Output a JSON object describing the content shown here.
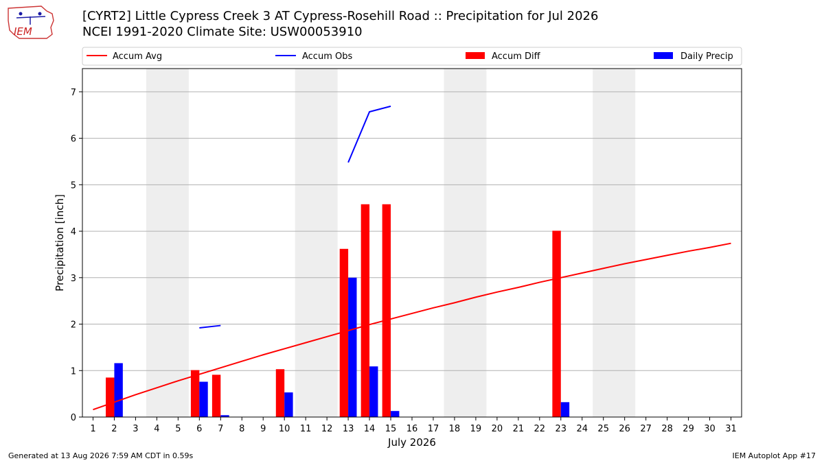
{
  "header": {
    "title_line1": "[CYRT2] Little Cypress Creek 3 AT Cypress-Rosehill Road :: Precipitation for Jul 2026",
    "title_line2": "NCEI 1991-2020 Climate Site: USW00053910",
    "logo_text": "IEM"
  },
  "footer": {
    "left": "Generated at 13 Aug 2026 7:59 AM CDT in 0.59s",
    "right": "IEM Autoplot App #17"
  },
  "colors": {
    "accum_avg": "#ff0000",
    "accum_obs": "#0000ff",
    "accum_diff": "#ff0000",
    "daily_precip": "#0000ff",
    "weekend_band": "#eeeeee",
    "grid": "#b0b0b0"
  },
  "chart_data": {
    "type": "bar",
    "xlabel": "July 2026",
    "ylabel": "Precipitation [inch]",
    "xlim": [
      0.5,
      31.5
    ],
    "ylim": [
      0,
      7.5
    ],
    "yticks": [
      0,
      1,
      2,
      3,
      4,
      5,
      6,
      7
    ],
    "xticks": [
      1,
      2,
      3,
      4,
      5,
      6,
      7,
      8,
      9,
      10,
      11,
      12,
      13,
      14,
      15,
      16,
      17,
      18,
      19,
      20,
      21,
      22,
      23,
      24,
      25,
      26,
      27,
      28,
      29,
      30,
      31
    ],
    "grid": "horizontal",
    "legend_position": "top",
    "weekend_bands": [
      [
        4,
        5
      ],
      [
        11,
        12
      ],
      [
        18,
        19
      ],
      [
        25,
        26
      ]
    ],
    "legend": [
      "Accum Avg",
      "Accum Obs",
      "Accum Diff",
      "Daily Precip"
    ],
    "accum_avg": {
      "name": "Accum Avg",
      "x": [
        1,
        2,
        3,
        4,
        5,
        6,
        7,
        8,
        9,
        10,
        11,
        12,
        13,
        14,
        15,
        16,
        17,
        18,
        19,
        20,
        21,
        22,
        23,
        24,
        25,
        26,
        27,
        28,
        29,
        30,
        31
      ],
      "values": [
        0.16,
        0.32,
        0.48,
        0.63,
        0.78,
        0.92,
        1.06,
        1.2,
        1.34,
        1.47,
        1.6,
        1.73,
        1.86,
        1.99,
        2.11,
        2.23,
        2.35,
        2.46,
        2.58,
        2.69,
        2.79,
        2.9,
        3.0,
        3.1,
        3.2,
        3.3,
        3.39,
        3.48,
        3.57,
        3.65,
        3.74
      ]
    },
    "accum_obs_segments": [
      {
        "x": [
          6,
          7
        ],
        "values": [
          1.92,
          1.97
        ]
      },
      {
        "x": [
          13,
          14,
          15
        ],
        "values": [
          5.48,
          6.57,
          6.69
        ]
      }
    ],
    "accum_diff": {
      "name": "Accum Diff",
      "x": [
        2,
        6,
        7,
        10,
        13,
        14,
        15,
        23
      ],
      "values": [
        0.85,
        1.01,
        0.91,
        1.03,
        3.62,
        4.58,
        4.58,
        4.01
      ]
    },
    "daily_precip": {
      "name": "Daily Precip",
      "x": [
        2,
        6,
        7,
        10,
        13,
        14,
        15,
        23
      ],
      "values": [
        1.16,
        0.76,
        0.04,
        0.53,
        3.0,
        1.09,
        0.13,
        0.32
      ]
    }
  }
}
